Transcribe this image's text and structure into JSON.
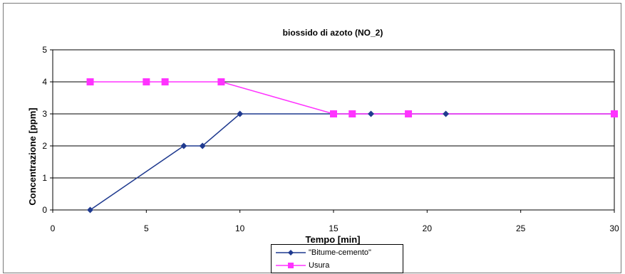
{
  "chart_data": {
    "type": "line",
    "title": "biossido di azoto (NO_2)",
    "xlabel": "Tempo [min]",
    "ylabel": "Concentrazione [ppm]",
    "xlim": [
      0,
      30
    ],
    "ylim": [
      0,
      5
    ],
    "x_ticks": [
      "0",
      "5",
      "10",
      "15",
      "20",
      "25",
      "30"
    ],
    "y_ticks": [
      "0",
      "1",
      "2",
      "3",
      "4",
      "5"
    ],
    "grid": "horizontal",
    "legend_position": "bottom-center",
    "series": [
      {
        "name": "\"Bitume-cemento\"",
        "color": "#1f3a8f",
        "marker": "diamond",
        "x": [
          2,
          7,
          8,
          10,
          15,
          17,
          21,
          30
        ],
        "y": [
          0,
          2,
          2,
          3,
          3,
          3,
          3,
          3
        ]
      },
      {
        "name": "Usura",
        "color": "#ff33ff",
        "marker": "square",
        "x": [
          2,
          5,
          6,
          9,
          15,
          16,
          19,
          30
        ],
        "y": [
          4,
          4,
          4,
          4,
          3,
          3,
          3,
          3
        ]
      }
    ]
  }
}
